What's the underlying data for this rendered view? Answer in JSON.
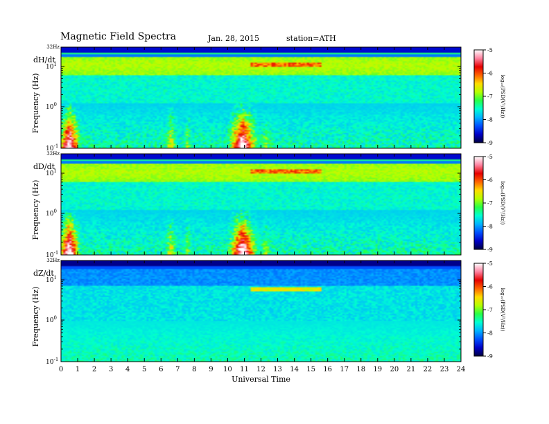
{
  "header": {
    "title": "Magnetic  Field  Spectra",
    "date": "Jan. 28, 2015",
    "station": "station=ATH"
  },
  "chart_data": {
    "type": "heatmap",
    "xlabel": "Universal Time",
    "xlim": [
      0,
      24
    ],
    "x_ticks": [
      "0",
      "1",
      "2",
      "3",
      "4",
      "5",
      "6",
      "7",
      "8",
      "9",
      "10",
      "11",
      "12",
      "13",
      "14",
      "15",
      "16",
      "17",
      "18",
      "19",
      "20",
      "21",
      "22",
      "23",
      "24"
    ],
    "ylabel": "Frequency  (Hz)",
    "y_scale": "log",
    "y_top_label": "32Hz",
    "y_ticks": [
      {
        "base": "10",
        "exp": "1"
      },
      {
        "base": "10",
        "exp": "0"
      },
      {
        "base": "10",
        "exp": "-1"
      }
    ],
    "colorbar": {
      "label": "log₁₀(PSD(V²/Hz))",
      "ticks": [
        "-5",
        "-6",
        "-7",
        "-8",
        "-9"
      ],
      "range": [
        -9,
        -5
      ],
      "colors": [
        "#000040",
        "#0000c8",
        "#0050ff",
        "#00b4ff",
        "#00ffd2",
        "#28ff46",
        "#b4ff00",
        "#ffdc00",
        "#ff6400",
        "#e60000",
        "#ff82a0",
        "#ffffff"
      ]
    },
    "panels": [
      {
        "name": "dH/dt"
      },
      {
        "name": "dD/dt"
      },
      {
        "name": "dZ/dt"
      }
    ]
  }
}
